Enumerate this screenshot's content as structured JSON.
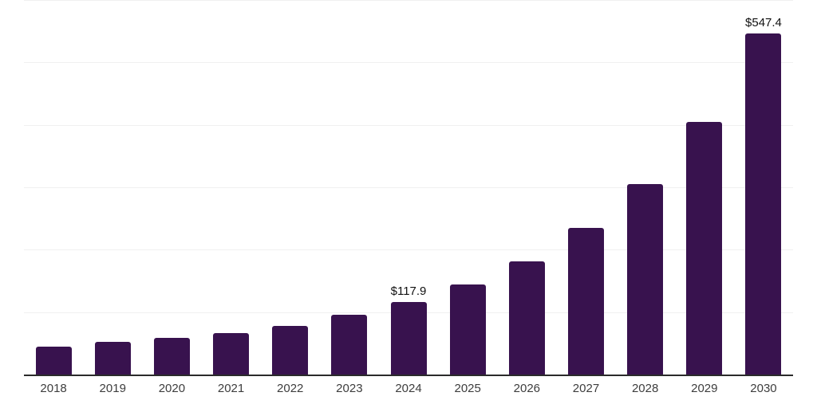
{
  "chart_data": {
    "type": "bar",
    "title": "",
    "xlabel": "",
    "ylabel": "",
    "categories": [
      "2018",
      "2019",
      "2020",
      "2021",
      "2022",
      "2023",
      "2024",
      "2025",
      "2026",
      "2027",
      "2028",
      "2029",
      "2030"
    ],
    "values": [
      46,
      54,
      60,
      68,
      79,
      97,
      117.9,
      146,
      183,
      236,
      306,
      406,
      547.4
    ],
    "point_labels": [
      {
        "category": "2024",
        "text": "$117.9"
      },
      {
        "category": "2030",
        "text": "$547.4"
      }
    ],
    "ylim": [
      0,
      600
    ],
    "gridline_values": [
      100,
      200,
      300,
      400,
      500,
      600
    ],
    "grid": "horizontal-only",
    "legend_position": "none",
    "colors": {
      "bar": "#38124e",
      "gridline": "#f0f0f0",
      "axis_line": "#2b2b2b",
      "tick_label": "#3d3d3d",
      "value_label": "#111111",
      "background": "#ffffff"
    }
  }
}
